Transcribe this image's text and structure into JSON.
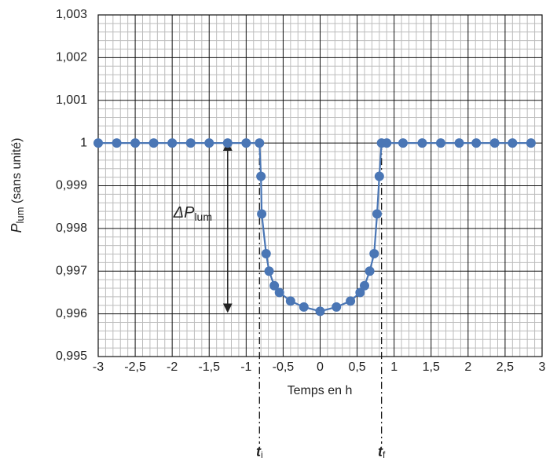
{
  "chart_data": {
    "type": "line",
    "x_label": "Temps en h",
    "y_label": {
      "main": "P",
      "sub": "lum",
      "rest": " (sans unité)"
    },
    "x": [
      -3,
      -2.75,
      -2.5,
      -2.25,
      -2,
      -1.75,
      -1.5,
      -1.25,
      -1,
      -0.82,
      -0.8,
      -0.79,
      -0.73,
      -0.69,
      -0.62,
      -0.55,
      -0.4,
      -0.22,
      0,
      0.22,
      0.41,
      0.54,
      0.6,
      0.67,
      0.73,
      0.77,
      0.8,
      0.83,
      0.9,
      1.12,
      1.38,
      1.63,
      1.88,
      2.11,
      2.36,
      2.6,
      2.85
    ],
    "series": [
      {
        "name": "P",
        "color": "#4a76b5",
        "values": [
          1,
          1,
          1,
          1,
          1,
          1,
          1,
          1,
          1,
          1,
          0.99922,
          0.99834,
          0.99741,
          0.997,
          0.99666,
          0.9965,
          0.9963,
          0.99616,
          0.99606,
          0.99616,
          0.9963,
          0.9965,
          0.99666,
          0.997,
          0.99741,
          0.99834,
          0.99922,
          1,
          1,
          1,
          1,
          1,
          1,
          1,
          1,
          1,
          1
        ]
      }
    ],
    "xlim": [
      -3,
      3
    ],
    "ylim": [
      0.995,
      1.003
    ],
    "xticks": [
      -3,
      {
        "value": -2.5,
        "label": "-2,5"
      },
      -2,
      {
        "value": -1.5,
        "label": "-1,5"
      },
      -1,
      {
        "value": -0.5,
        "label": "-0,5"
      },
      0,
      {
        "value": 0.5,
        "label": "0,5"
      },
      1,
      {
        "value": 1.5,
        "label": "1,5"
      },
      2,
      {
        "value": 2.5,
        "label": "2,5"
      },
      3
    ],
    "yticks": [
      {
        "value": 0.995,
        "label": "0,995"
      },
      {
        "value": 0.996,
        "label": "0,996"
      },
      {
        "value": 0.997,
        "label": "0,997"
      },
      {
        "value": 0.998,
        "label": "0,998"
      },
      {
        "value": 0.999,
        "label": "0,999"
      },
      1,
      {
        "value": 1.001,
        "label": "1,001"
      },
      {
        "value": 1.002,
        "label": "1,002"
      },
      {
        "value": 1.003,
        "label": "1,003"
      }
    ],
    "grid": true,
    "minor_divisions": 5,
    "annotations": {
      "delta": {
        "main": "ΔP",
        "sub": "lum",
        "x": -1.25,
        "y1": 1,
        "y2": 0.99606
      },
      "ti": {
        "main": "t",
        "sub": "i",
        "x": -0.82
      },
      "tf": {
        "main": "t",
        "sub": "f",
        "x": 0.83
      }
    }
  }
}
